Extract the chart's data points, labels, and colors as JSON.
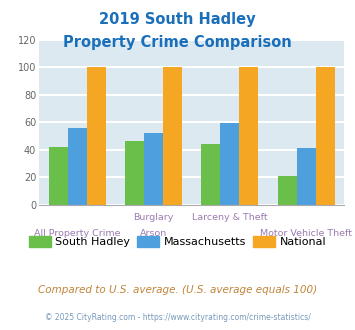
{
  "title_line1": "2019 South Hadley",
  "title_line2": "Property Crime Comparison",
  "title_color": "#1a6fba",
  "series": [
    {
      "label": "South Hadley",
      "color": "#6abf4b",
      "values": [
        42,
        46,
        44,
        21
      ]
    },
    {
      "label": "Massachusetts",
      "color": "#4d9fde",
      "values": [
        56,
        52,
        59,
        41
      ]
    },
    {
      "label": "National",
      "color": "#f5a623",
      "values": [
        100,
        100,
        100,
        100
      ]
    }
  ],
  "group_positions": [
    0,
    1,
    2,
    3
  ],
  "group_labels_top": [
    "",
    "Burglary",
    "Larceny & Theft",
    ""
  ],
  "group_labels_bottom": [
    "All Property Crime",
    "Arson",
    "",
    "Motor Vehicle Theft"
  ],
  "ylim": [
    0,
    120
  ],
  "yticks": [
    0,
    20,
    40,
    60,
    80,
    100,
    120
  ],
  "plot_bg_color": "#dce9f0",
  "grid_color": "#ffffff",
  "label_color": "#9b7bb0",
  "footer_note": "Compared to U.S. average. (U.S. average equals 100)",
  "footer_note_color": "#c0853a",
  "copyright": "© 2025 CityRating.com - https://www.cityrating.com/crime-statistics/",
  "copyright_color": "#7799bb",
  "bar_width": 0.25
}
